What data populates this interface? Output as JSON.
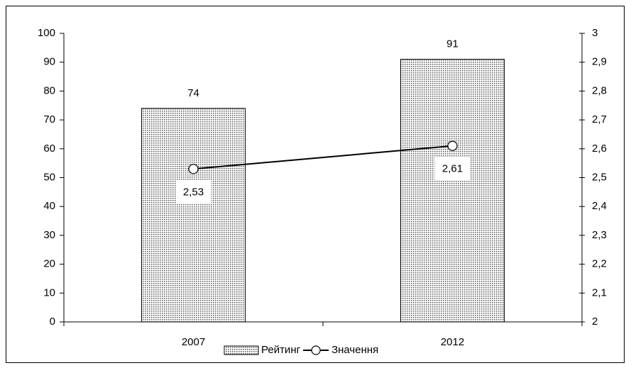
{
  "chart_data": {
    "type": "bar",
    "categories": [
      "2007",
      "2012"
    ],
    "series": [
      {
        "name": "Рейтинг",
        "type": "bar",
        "color": "#555555",
        "values": [
          74,
          91
        ]
      },
      {
        "name": "Значення",
        "type": "line",
        "axis": "y2",
        "color": "#000000",
        "values": [
          2.53,
          2.61
        ],
        "value_labels": [
          "2,53",
          "2,61"
        ]
      }
    ],
    "ylim": [
      0,
      100
    ],
    "yticks": [
      0,
      10,
      20,
      30,
      40,
      50,
      60,
      70,
      80,
      90,
      100
    ],
    "y2lim": [
      2,
      3
    ],
    "y2ticks": [
      2,
      {
        "value": 2.1,
        "label": "2,1"
      },
      {
        "value": 2.2,
        "label": "2,2"
      },
      {
        "value": 2.3,
        "label": "2,3"
      },
      {
        "value": 2.4,
        "label": "2,4"
      },
      {
        "value": 2.5,
        "label": "2,5"
      },
      {
        "value": 2.6,
        "label": "2,6"
      },
      {
        "value": 2.7,
        "label": "2,7"
      },
      {
        "value": 2.8,
        "label": "2,8"
      },
      {
        "value": 2.9,
        "label": "2,9"
      },
      3
    ],
    "legend": "bottom"
  }
}
